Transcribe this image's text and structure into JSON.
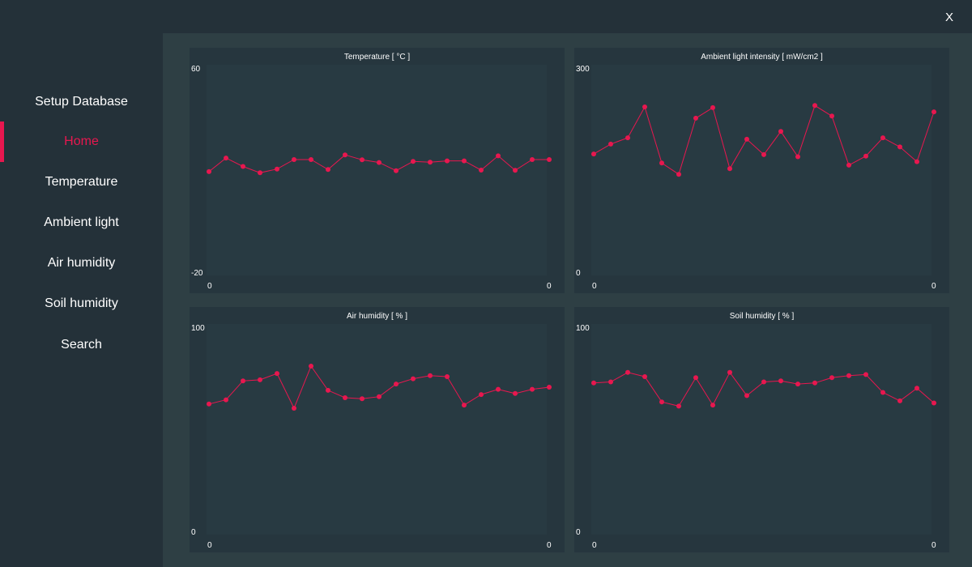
{
  "window": {
    "close_label": "X"
  },
  "sidebar": {
    "items": [
      {
        "label": "Setup Database",
        "active": false
      },
      {
        "label": "Home",
        "active": true
      },
      {
        "label": "Temperature",
        "active": false
      },
      {
        "label": "Ambient light",
        "active": false
      },
      {
        "label": "Air humidity",
        "active": false
      },
      {
        "label": "Soil humidity",
        "active": false
      },
      {
        "label": "Search",
        "active": false
      }
    ]
  },
  "colors": {
    "accent": "#e8174f",
    "background": "#243139",
    "main": "#2e3f44",
    "panel": "#26363e",
    "plot": "#283a42"
  },
  "chart_data": [
    {
      "type": "line",
      "title": "Temperature [ °C ]",
      "ylim": [
        -20,
        60
      ],
      "ytick_labels": [
        "60",
        "-20"
      ],
      "xtick_labels": [
        "0",
        "0"
      ],
      "values": [
        19.4,
        24.6,
        21.4,
        19.0,
        20.4,
        24.0,
        24.0,
        20.2,
        25.8,
        23.9,
        22.9,
        19.8,
        23.3,
        23.0,
        23.5,
        23.5,
        20.0,
        25.4,
        19.9,
        24.0,
        24.0
      ]
    },
    {
      "type": "line",
      "title": "Ambient light intensity [ mW/cm2 ]",
      "ylim": [
        0,
        300
      ],
      "ytick_labels": [
        "300",
        "0"
      ],
      "xtick_labels": [
        "0",
        "0"
      ],
      "values": [
        173,
        187,
        196,
        240,
        160,
        144,
        224,
        239,
        152,
        194,
        172,
        205,
        169,
        242,
        227,
        157,
        170,
        196,
        183,
        162,
        233
      ]
    },
    {
      "type": "line",
      "title": "Air humidity [ % ]",
      "ylim": [
        0,
        100
      ],
      "ytick_labels": [
        "100",
        "0"
      ],
      "xtick_labels": [
        "0",
        "0"
      ],
      "values": [
        62,
        64,
        73,
        73.5,
        76.5,
        60,
        80,
        68.5,
        65,
        64.5,
        65.5,
        71.5,
        74,
        75.5,
        75,
        61.5,
        66.5,
        69,
        67,
        69,
        70
      ]
    },
    {
      "type": "line",
      "title": "Soil humidity [ % ]",
      "ylim": [
        0,
        100
      ],
      "ytick_labels": [
        "100",
        "0"
      ],
      "xtick_labels": [
        "0",
        "0"
      ],
      "values": [
        72,
        72.5,
        77,
        75,
        63,
        61,
        74.5,
        61.5,
        77,
        66,
        72.5,
        73,
        71.5,
        72,
        74.5,
        75.5,
        76,
        67.5,
        63.5,
        69.5,
        62.5
      ]
    }
  ]
}
